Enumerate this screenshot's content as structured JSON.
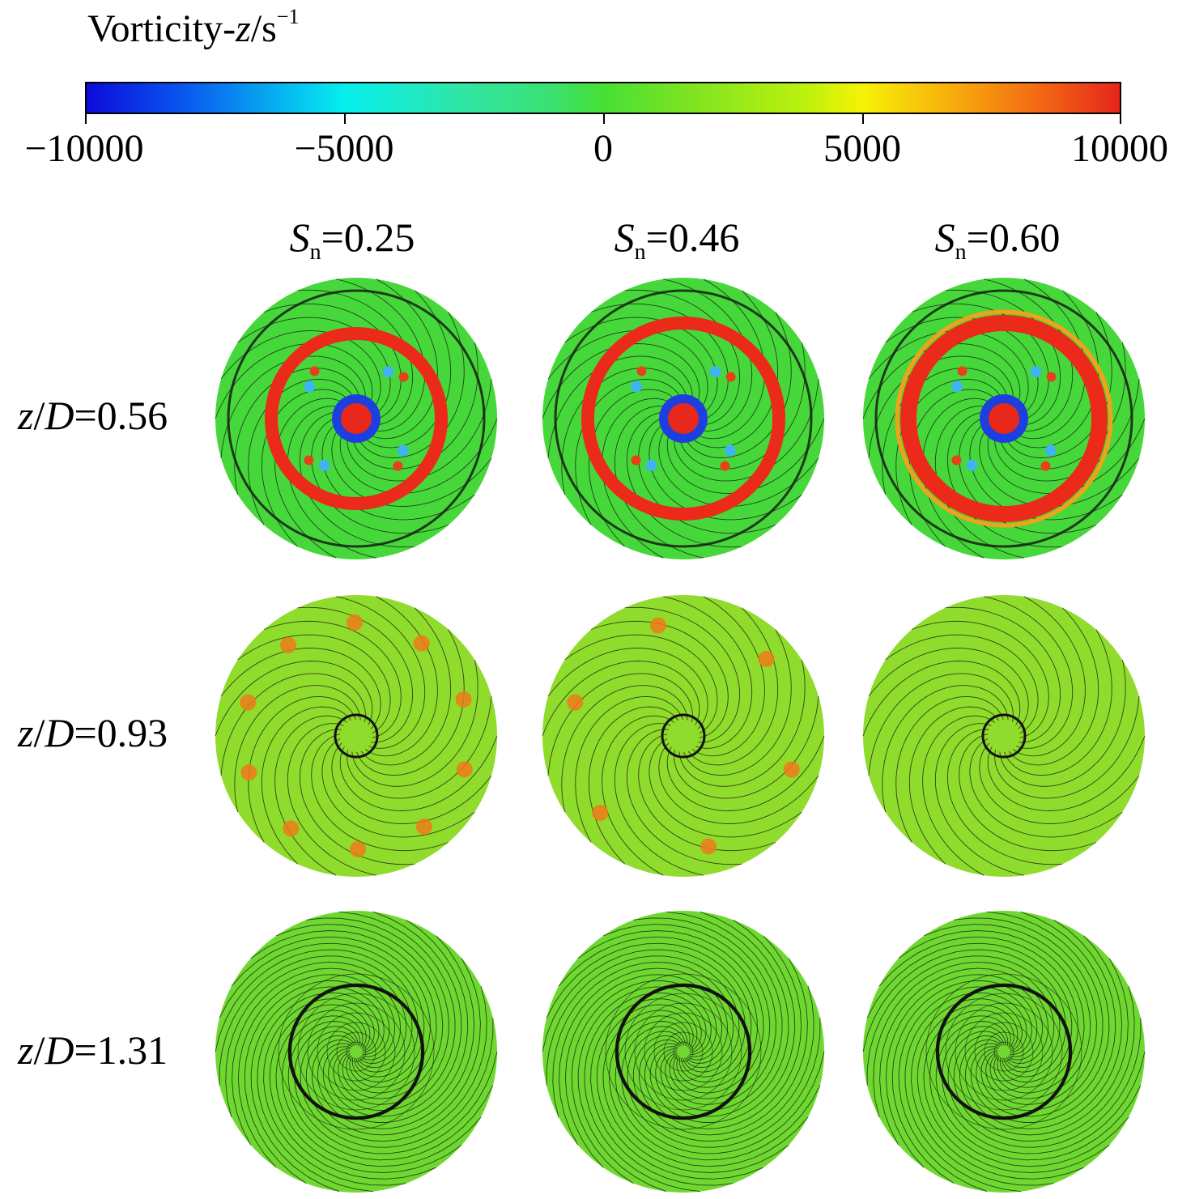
{
  "colorbar": {
    "title_prefix": "Vorticity-",
    "title_var": "z",
    "title_unit": "/s",
    "title_exp": "−1",
    "tick_labels": [
      "−10000",
      "−5000",
      "0",
      "5000",
      "10000"
    ],
    "range": [
      -10000,
      10000
    ],
    "colors": [
      "#0b0bd8",
      "#06efee",
      "#46e034",
      "#f6f205",
      "#e5261a"
    ]
  },
  "columns": [
    {
      "symbol": "S",
      "subscript": "n",
      "value": "=0.25"
    },
    {
      "symbol": "S",
      "subscript": "n",
      "value": "=0.46"
    },
    {
      "symbol": "S",
      "subscript": "n",
      "value": "=0.60"
    }
  ],
  "rows": [
    {
      "symbol": "z",
      "slash": "/",
      "symbol2": "D",
      "value": "=0.56"
    },
    {
      "symbol": "z",
      "slash": "/",
      "symbol2": "D",
      "value": "=0.93"
    },
    {
      "symbol": "z",
      "slash": "/",
      "symbol2": "D",
      "value": "=1.31"
    }
  ]
}
